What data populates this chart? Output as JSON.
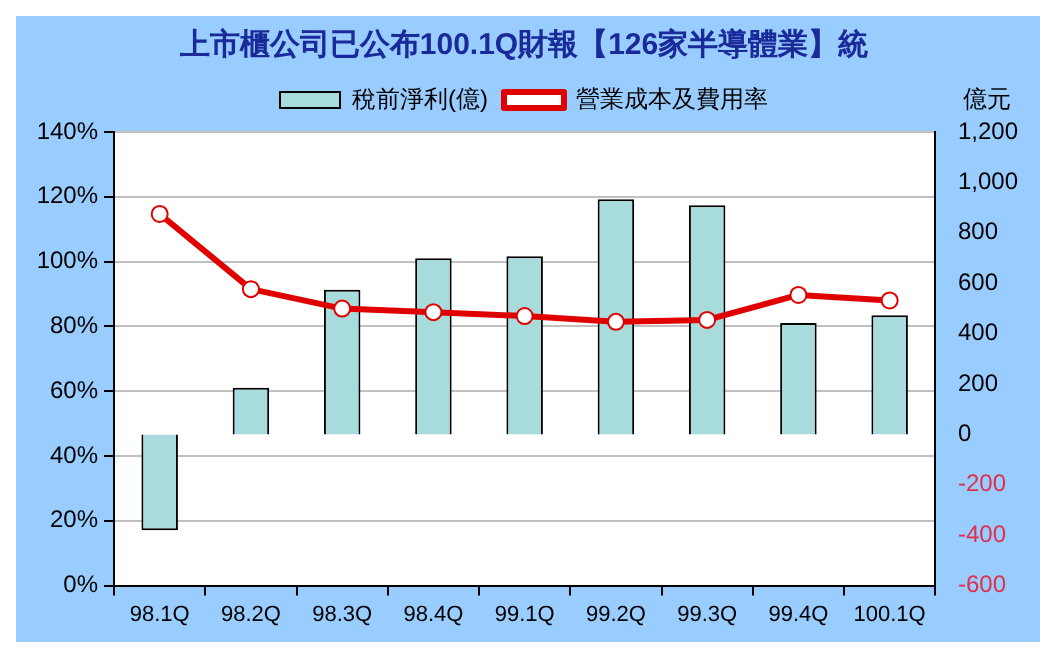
{
  "chart_data": {
    "type": "bar",
    "title": "上市櫃公司已公布100.1Q財報【126家半導體業】統",
    "y2label": "億元",
    "categories": [
      "98.1Q",
      "98.2Q",
      "98.3Q",
      "98.4Q",
      "99.1Q",
      "99.2Q",
      "99.3Q",
      "99.4Q",
      "100.1Q"
    ],
    "series": [
      {
        "name": "稅前淨利(億)",
        "axis": "y2",
        "color": "#a8dcdc",
        "values": [
          -380,
          185,
          574,
          699,
          707,
          933,
          909,
          442,
          473
        ]
      },
      {
        "name": "營業成本及費用率",
        "type": "line",
        "color": "#e00000",
        "marker": "circle",
        "values": [
          114.7,
          91.5,
          85.5,
          84.4,
          83.2,
          81.4,
          82,
          89.7,
          88
        ]
      }
    ],
    "ylim": [
      0,
      140
    ],
    "yticks": [
      {
        "value": 0,
        "label": "0%"
      },
      {
        "value": 20,
        "label": "20%"
      },
      {
        "value": 40,
        "label": "40%"
      },
      {
        "value": 60,
        "label": "60%"
      },
      {
        "value": 80,
        "label": "80%"
      },
      {
        "value": 100,
        "label": "100%"
      },
      {
        "value": 120,
        "label": "120%"
      },
      {
        "value": 140,
        "label": "140%"
      }
    ],
    "y2lim": [
      -600,
      1200
    ],
    "y2ticks": [
      -600,
      -400,
      -200,
      0,
      200,
      400,
      600,
      800,
      {
        "value": 1000,
        "label": "1,000"
      },
      {
        "value": 1200,
        "label": "1,200"
      }
    ],
    "grid": "y",
    "legend": "top"
  }
}
